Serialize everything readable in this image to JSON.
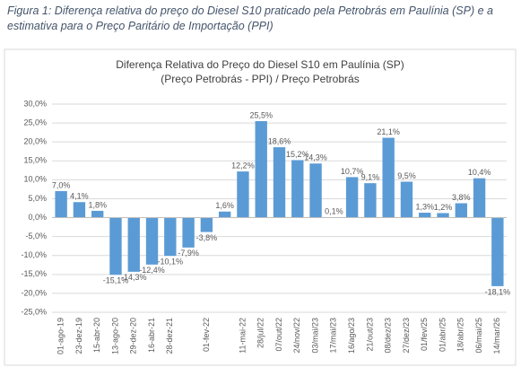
{
  "caption": "Figura 1: Diferença relativa do preço do Diesel S10 praticado pela Petrobrás em Paulínia (SP) e a estimativa para o Preço Paritário de Importação (PPI)",
  "chart_data": {
    "type": "bar",
    "title": [
      "Diferença Relativa do Preço do Diesel S10 em Paulínia (SP)",
      "(Preço Petrobrás - PPI) / Preço Petrobrás"
    ],
    "categories": [
      "01-ago-19",
      "23-dez-19",
      "15-abr-20",
      "13-ago-20",
      "29-dez-20",
      "16-abr-21",
      "28-dez-21",
      null,
      "01-fev-22",
      null,
      "11-mai-22",
      "28/jul/22",
      "07/out/22",
      "24/nov/22",
      "03/mai/23",
      "17/mai/23",
      "16/ago/23",
      "21/out/23",
      "08/dez/23",
      "27/dez/23",
      "01/fev/25",
      "01/abr/25",
      "18/abr/25",
      "06/mai/25",
      "14/mar/26"
    ],
    "values": [
      7.0,
      4.1,
      1.8,
      -15.1,
      -14.3,
      -12.4,
      -10.1,
      -7.9,
      -3.8,
      1.6,
      12.2,
      25.5,
      18.6,
      15.2,
      14.3,
      0.1,
      10.7,
      9.1,
      21.1,
      9.5,
      1.3,
      1.2,
      3.8,
      10.4,
      -18.1
    ],
    "value_labels": [
      "7,0%",
      "4,1%",
      "1,8%",
      "-15,1%",
      "-14,3%",
      "-12,4%",
      "-10,1%",
      "-7,9%",
      "-3,8%",
      "1,6%",
      "12,2%",
      "25,5%",
      "18,6%",
      "15,2%",
      "14,3%",
      "0,1%",
      "10,7%",
      "9,1%",
      "21,1%",
      "9,5%",
      "1,3%",
      "1,2%",
      "3,8%",
      "10,4%",
      "-18,1%"
    ],
    "color": "#5b9bd5",
    "ylim": [
      -25,
      30
    ],
    "yticks": [
      {
        "value": -25,
        "label": "-25,0%"
      },
      {
        "value": -20,
        "label": "-20,0%"
      },
      {
        "value": -15,
        "label": "-15,0%"
      },
      {
        "value": -10,
        "label": "-10,0%"
      },
      {
        "value": -5,
        "label": "-5,0%"
      },
      {
        "value": 0,
        "label": "0,0%"
      },
      {
        "value": 5,
        "label": "5,0%"
      },
      {
        "value": 10,
        "label": "10,0%"
      },
      {
        "value": 15,
        "label": "15,0%"
      },
      {
        "value": 20,
        "label": "20,0%"
      },
      {
        "value": 25,
        "label": "25,0%"
      },
      {
        "value": 30,
        "label": "30,0%"
      }
    ],
    "grid": true
  }
}
